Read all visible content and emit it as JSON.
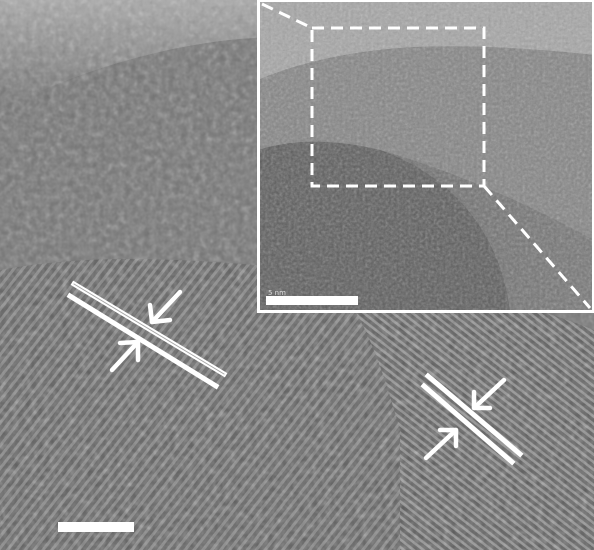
{
  "figure": {
    "type": "hrtem-micrograph",
    "colors": {
      "background": "#ffffff",
      "main_image_mid": "#6e6e6e",
      "main_image_dark": "#3c3c3c",
      "main_image_light": "#a6a6a6",
      "inset_image_mid": "#6a6a6a",
      "inset_shell": "#8a8a8a",
      "annotation_white": "#ffffff"
    },
    "icons": {
      "arrow": "arrow-icon",
      "lattice_marker": "lattice-spacing-marker"
    }
  },
  "inset": {
    "scale_bar_label": "5 nm"
  }
}
